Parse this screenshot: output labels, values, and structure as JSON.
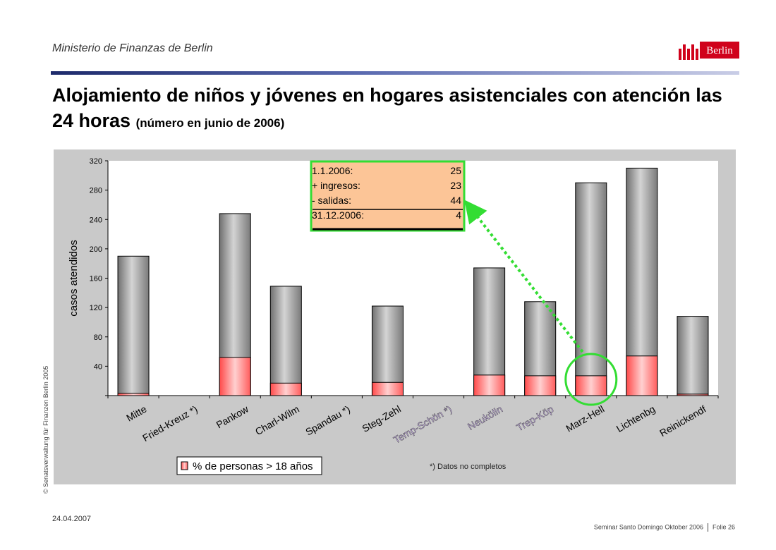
{
  "header": {
    "organization": "Ministerio de Finanzas de Berlin",
    "logo_text": "Berlin"
  },
  "title": {
    "main": "Alojamiento de niños y jóvenes en hogares asistenciales con atención las 24 horas",
    "sub": "(número en junio de 2006)"
  },
  "chart_data": {
    "type": "bar",
    "stacked": true,
    "ylabel": "casos atendidos",
    "ylim": [
      0,
      320
    ],
    "yticks": [
      40,
      80,
      120,
      160,
      200,
      240,
      280,
      320
    ],
    "categories": [
      "Mitte",
      "Fried-Kreuz *)",
      "Pankow",
      "Charl-Wilm",
      "Spandau *)",
      "Steg-Zehl",
      "Temp-Schön *)",
      "Neukölln",
      "Trep-Köp",
      "Marz-Hell",
      "Lichtenbg",
      "Reinickendf"
    ],
    "highlighted_categories": [
      "Temp-Schön *)",
      "Neukölln",
      "Trep-Köp"
    ],
    "totals": [
      190,
      0,
      248,
      149,
      0,
      122,
      0,
      174,
      128,
      290,
      310,
      108
    ],
    "series": [
      {
        "name": "% de personas > 18 años",
        "values": [
          3,
          0,
          52,
          17,
          0,
          18,
          0,
          28,
          27,
          27,
          54,
          2
        ]
      }
    ],
    "legend": "bottom-left",
    "footnote": "*)  Datos no completos",
    "callout": {
      "rows": [
        {
          "label": "1.1.2006:",
          "value": "25"
        },
        {
          "label": "+ ingresos:",
          "value": "23"
        },
        {
          "label": "- salidas:",
          "value": "44"
        },
        {
          "label": "31.12.2006:",
          "value": "4"
        }
      ],
      "target_category": "Marz-Hell"
    },
    "colors": {
      "plot_background": "#ffffff",
      "chart_background": "#c9c9c9",
      "total_bar": "#9a9a9a",
      "subset_bar": "#ff6b6b",
      "callout_fill": "#fcc597",
      "callout_border": "#33dd33",
      "highlight_text": "#c7b0e6"
    }
  },
  "footer": {
    "copyright": "© Senatsverwaltung für Finanzen Berlin 2005",
    "date": "24.04.2007",
    "seminar": "Seminar Santo Domingo Oktober 2006",
    "slide": "Folie 26"
  }
}
